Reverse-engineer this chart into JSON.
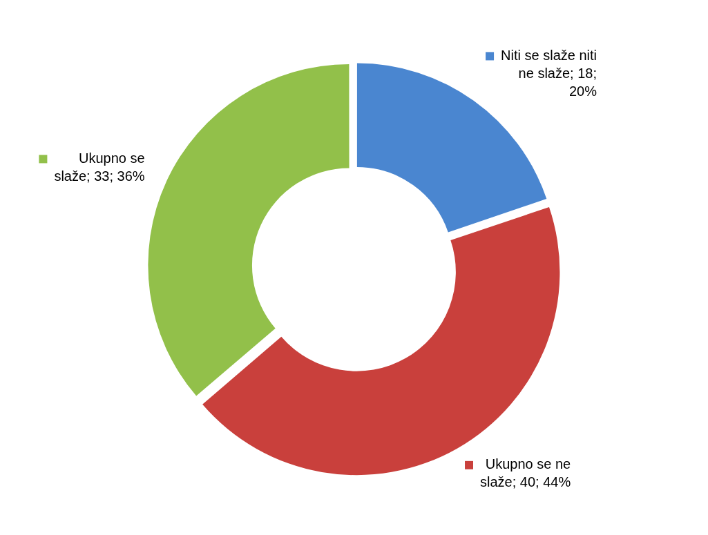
{
  "chart_data": {
    "type": "donut",
    "categories": [
      "Niti se slaže niti ne slaže",
      "Ukupno se ne slaže",
      "Ukupno se slaže"
    ],
    "values": [
      18,
      40,
      33
    ],
    "colors": [
      "#4a86d0",
      "#c9403c",
      "#92c04a"
    ],
    "value_labels": [
      "18; 20%",
      "40; 44%",
      "33; 36%"
    ],
    "legend": "bottom left"
  }
}
